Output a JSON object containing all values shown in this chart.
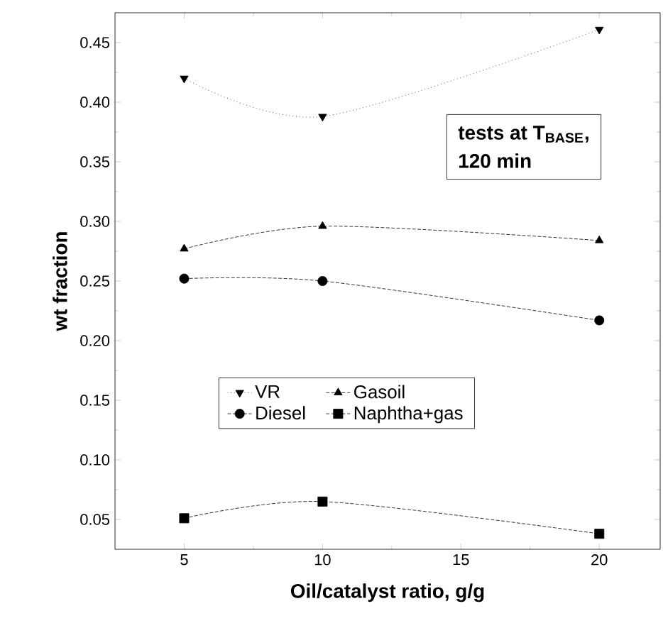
{
  "chart_data": {
    "type": "line",
    "xlabel": "Oil/catalyst ratio, g/g",
    "ylabel": "wt fraction",
    "annotations": [
      "tests at T$_{BASE}$,",
      "120 min"
    ],
    "x": [
      5,
      10,
      20
    ],
    "series": [
      {
        "name": "VR",
        "color": "#000000",
        "marker": "triangle_down",
        "line_style": "dotted",
        "values": [
          0.42,
          0.388,
          0.461
        ]
      },
      {
        "name": "Gasoil",
        "color": "#000000",
        "marker": "triangle",
        "line_style": "dashed",
        "values": [
          0.277,
          0.296,
          0.284
        ]
      },
      {
        "name": "Diesel",
        "color": "#000000",
        "marker": "circle",
        "line_style": "dashed",
        "values": [
          0.252,
          0.25,
          0.217
        ]
      },
      {
        "name": "Naphtha+gas",
        "color": "#000000",
        "marker": "square",
        "line_style": "dashed",
        "values": [
          0.051,
          0.065,
          0.038
        ]
      }
    ],
    "xlim": [
      2.5,
      22.2
    ],
    "xticks": [
      5,
      10,
      15,
      20
    ],
    "ylim": [
      0.025,
      0.475
    ],
    "yticks": [
      {
        "value": 0.05,
        "label": "0.05"
      },
      {
        "value": 0.1,
        "label": "0.10"
      },
      {
        "value": 0.15,
        "label": "0.15"
      },
      {
        "value": 0.2,
        "label": "0.20"
      },
      {
        "value": 0.25,
        "label": "0.25"
      },
      {
        "value": 0.3,
        "label": "0.30"
      },
      {
        "value": 0.35,
        "label": "0.35"
      },
      {
        "value": 0.4,
        "label": "0.40"
      },
      {
        "value": 0.45,
        "label": "0.45"
      }
    ],
    "legend": "bottom"
  }
}
